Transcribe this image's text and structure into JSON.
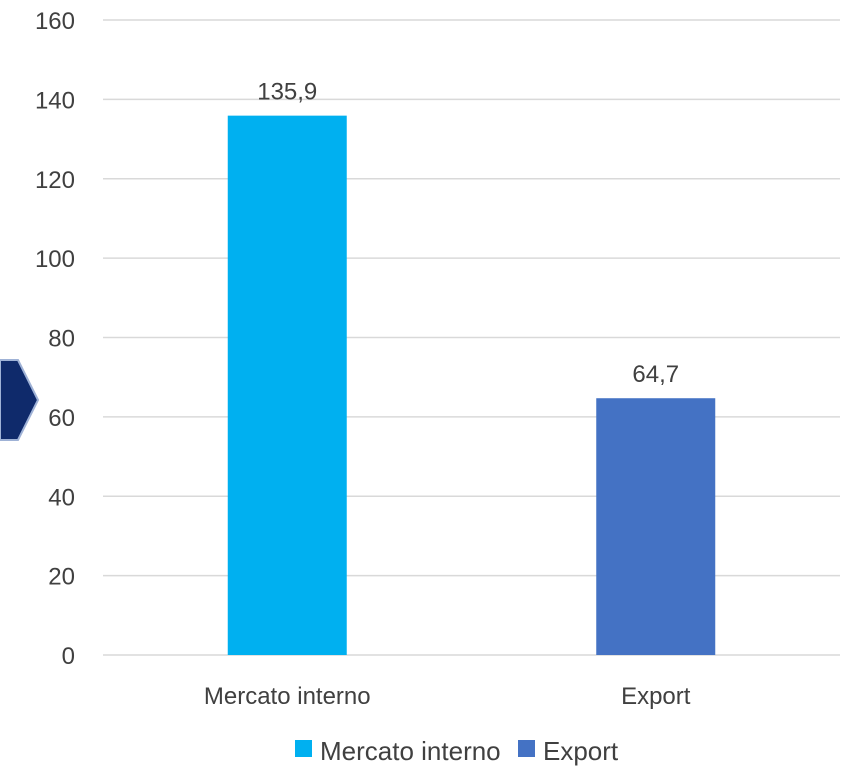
{
  "chart_data": {
    "type": "bar",
    "title": "",
    "xlabel": "",
    "ylabel": "",
    "categories": [
      "Mercato interno",
      "Export"
    ],
    "values": [
      135.9,
      64.7
    ],
    "value_labels": [
      "135,9",
      "64,7"
    ],
    "series": [
      {
        "name": "Mercato interno",
        "values": [
          135.9,
          null
        ],
        "color": "#00B0F0"
      },
      {
        "name": "Export",
        "values": [
          null,
          64.7
        ],
        "color": "#4472C4"
      }
    ],
    "ylim": [
      0,
      160
    ],
    "yticks": [
      0,
      20,
      40,
      60,
      80,
      100,
      120,
      140,
      160
    ],
    "grid": true,
    "legend_position": "bottom"
  },
  "colors": {
    "gridline": "#D9D9D9",
    "text": "#404040",
    "arrow_fill": "#0F2A6B",
    "arrow_stroke": "#9FB2D6"
  }
}
